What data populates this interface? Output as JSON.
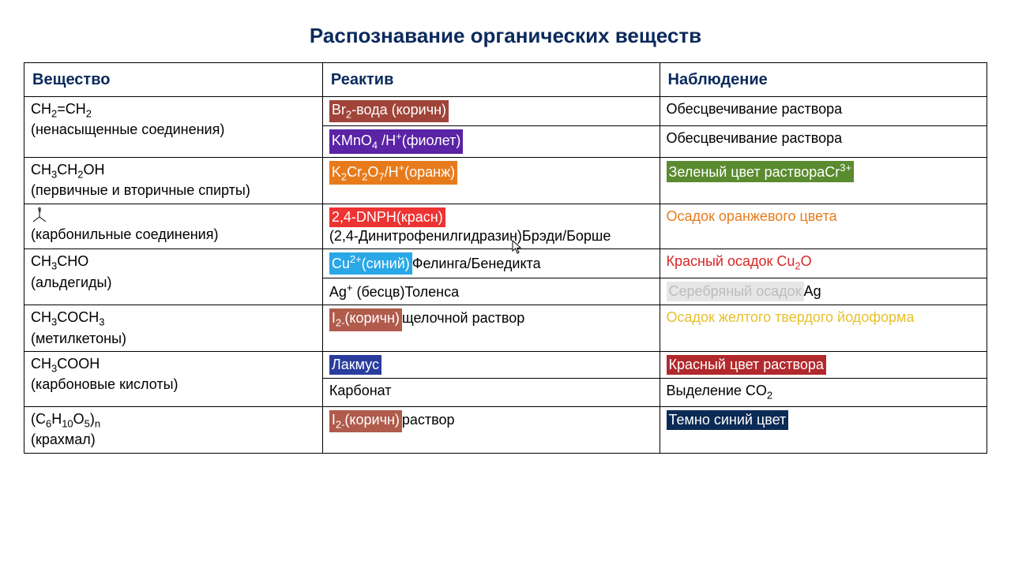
{
  "title": "Распознавание органических веществ",
  "headers": {
    "substance": "Вещество",
    "reagent": "Реактив",
    "observation": "Наблюдение"
  },
  "styling": {
    "title_color": "#0a2a5c",
    "header_color": "#0a2a5c",
    "border_color": "#000000",
    "font_sizes": {
      "title": 26,
      "header": 20,
      "cell": 18
    },
    "highlights": {
      "brown": "#a0443a",
      "violet": "#5b23a5",
      "orange": "#e77b1c",
      "red": "#ee3333",
      "cyan": "#2aa7e6",
      "brown2": "#b05b4c",
      "blue": "#2a3d9e",
      "green": "#5a8b2f",
      "dkred": "#b1292c",
      "navy": "#0b2a56",
      "silver_bg": "#e6e6e6",
      "silver_fg": "#bdbdbd"
    },
    "text_colors": {
      "orange": "#e77b1c",
      "red": "#d92626",
      "yellow": "#e6c02a"
    }
  },
  "rows": [
    {
      "substance": {
        "formula_html": "CH<sub>2</sub>=CH<sub>2</sub>",
        "note": "(ненасыщенные соединения)",
        "rowspan": 2
      },
      "reagent": {
        "hl_class": "hl-brown",
        "hl_html": "Br<sub>2</sub>-вода (коричн)"
      },
      "observation": {
        "text": "Обесцвечивание раствора"
      }
    },
    {
      "reagent": {
        "hl_class": "hl-violet",
        "hl_html": "KMnO<sub>4</sub> /H<sup>+</sup>(фиолет)"
      },
      "observation": {
        "text": "Обесцвечивание раствора"
      }
    },
    {
      "substance": {
        "formula_html": "CH<sub>3</sub>CH<sub>2</sub>OH",
        "note": "(первичные и вторичные спирты)"
      },
      "reagent": {
        "hl_class": "hl-orange",
        "hl_html": "K<sub>2</sub>Cr<sub>2</sub>O<sub>7</sub>/H<sup>+</sup>(оранж)"
      },
      "observation": {
        "hl_class": "hl-green",
        "hl_html": "Зеленый цвет раствораCr<sup>3+</sup>"
      }
    },
    {
      "substance": {
        "svg": true,
        "note": "(карбонильные соединения)"
      },
      "reagent": {
        "hl_class": "hl-red",
        "hl_html": " 2,4-DNPH(красн)",
        "after_text": "(2,4-Динитрофенилгидразин)Брэди/Борше",
        "break_after": true
      },
      "observation": {
        "txt_class": "txt-orange",
        "text": "Осадок оранжевого цвета"
      }
    },
    {
      "substance": {
        "formula_html": "CH<sub>3</sub>CHO",
        "note": "(альдегиды)",
        "rowspan": 2
      },
      "reagent": {
        "hl_class": "hl-cyan",
        "hl_html": "Cu<sup>2+</sup>(синий)",
        "after_text": "Фелинга/Бенедикта"
      },
      "observation": {
        "txt_class": "txt-red",
        "text_html": "Красный осадок Cu<sub>2</sub>O"
      }
    },
    {
      "reagent": {
        "plain_html": "Ag<sup>+</sup> (бесцв)Толенса"
      },
      "observation": {
        "hl_class": "hl-silver",
        "hl_html": "Серебряный осадок ",
        "after_text": "Ag"
      }
    },
    {
      "substance": {
        "formula_html": "CH<sub>3</sub>COCH<sub>3</sub>",
        "note": "(метилкетоны)"
      },
      "reagent": {
        "hl_class": "hl-brown2",
        "hl_html": "I<sub>2-</sub>(коричн)",
        "after_text": "щелочной раствор"
      },
      "observation": {
        "txt_class": "txt-yellow",
        "text": "Осадок желтого твердого йодоформа"
      }
    },
    {
      "substance": {
        "formula_html": "CH<sub>3</sub>COOH",
        "note": "(карбоновые кислоты)",
        "rowspan": 2
      },
      "reagent": {
        "hl_class": "hl-blue",
        "hl_html": "Лакмус"
      },
      "observation": {
        "hl_class": "hl-dkred",
        "hl_html": "Красный цвет раствора"
      }
    },
    {
      "reagent": {
        "plain_html": "Карбонат"
      },
      "observation": {
        "text_html": "Выделение CO<sub>2</sub>"
      }
    },
    {
      "substance": {
        "formula_html": "(С<sub>6</sub>Н<sub>10</sub>О<sub>5</sub>)<sub>n</sub>",
        "note": "(крахмал)"
      },
      "reagent": {
        "hl_class": "hl-brown2",
        "hl_html": "I<sub>2-</sub>(коричн)",
        "after_text": "раствор"
      },
      "observation": {
        "hl_class": "hl-navy",
        "hl_html": "Темно синий цвет"
      }
    }
  ]
}
